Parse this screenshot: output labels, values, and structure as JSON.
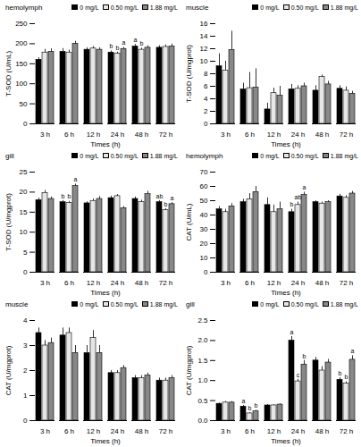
{
  "chart_data": [
    {
      "type": "bar",
      "title": "hemolymph",
      "xlabel": "Times (h)",
      "ylabel": "T-SOD (U/mL)",
      "categories": [
        "3 h",
        "6 h",
        "12 h",
        "24 h",
        "48 h",
        "72 h"
      ],
      "ylim": [
        0,
        250
      ],
      "yticks": [
        0,
        50,
        100,
        150,
        200,
        250
      ],
      "legend": "top-right",
      "series": [
        {
          "name": "0 mg/L",
          "color": "#000000",
          "values": [
            160,
            180,
            185,
            178,
            193,
            190
          ],
          "errors": [
            5,
            8,
            5,
            4,
            5,
            5
          ],
          "letters": [
            null,
            null,
            null,
            "b",
            "a",
            null
          ]
        },
        {
          "name": "0.50 mg/L",
          "color": "#e6e6e6",
          "values": [
            178,
            178,
            188,
            175,
            185,
            192
          ],
          "errors": [
            8,
            6,
            5,
            4,
            4,
            5
          ],
          "letters": [
            null,
            null,
            null,
            "b",
            "b",
            null
          ]
        },
        {
          "name": "1.88 mg/L",
          "color": "#888888",
          "values": [
            180,
            200,
            185,
            187,
            190,
            193
          ],
          "errors": [
            7,
            6,
            5,
            4,
            5,
            6
          ],
          "letters": [
            null,
            null,
            null,
            "a",
            null,
            null
          ]
        }
      ]
    },
    {
      "type": "bar",
      "title": "muscle",
      "xlabel": "Times (h)",
      "ylabel": "T-SOD (U/mgprot)",
      "categories": [
        "3 h",
        "6 h",
        "12 h",
        "24 h",
        "48 h",
        "72 h"
      ],
      "ylim": [
        0,
        16
      ],
      "yticks": [
        0,
        2,
        4,
        6,
        8,
        10,
        12,
        14,
        16
      ],
      "legend": "top-right",
      "series": [
        {
          "name": "0 mg/L",
          "color": "#000000",
          "values": [
            9.2,
            5.5,
            2.3,
            5.5,
            5.3,
            5.6
          ],
          "errors": [
            2,
            1,
            1,
            0.8,
            0.8,
            0.5
          ],
          "letters": [
            null,
            null,
            null,
            null,
            null,
            null
          ]
        },
        {
          "name": "0.50 mg/L",
          "color": "#e6e6e6",
          "values": [
            8.5,
            5.7,
            4.9,
            5.6,
            7.5,
            5.3
          ],
          "errors": [
            1.5,
            2.5,
            0.8,
            0.5,
            0.3,
            0.6
          ],
          "letters": [
            null,
            null,
            null,
            null,
            null,
            null
          ]
        },
        {
          "name": "1.88 mg/L",
          "color": "#888888",
          "values": [
            11.8,
            5.8,
            4.5,
            6.0,
            6.3,
            4.8
          ],
          "errors": [
            3,
            3,
            1.5,
            0.5,
            0.5,
            0.4
          ],
          "letters": [
            null,
            null,
            null,
            null,
            null,
            null
          ]
        }
      ]
    },
    {
      "type": "bar",
      "title": "gill",
      "xlabel": "Times (h)",
      "ylabel": "T-SOD (U/mgprot)",
      "categories": [
        "3 h",
        "6 h",
        "12 h",
        "24 h",
        "48 h",
        "72 h"
      ],
      "ylim": [
        0,
        25
      ],
      "yticks": [
        0,
        5,
        10,
        15,
        20,
        25
      ],
      "legend": "top-right",
      "series": [
        {
          "name": "0 mg/L",
          "color": "#000000",
          "values": [
            18,
            17.5,
            17.2,
            18.5,
            18.3,
            17.5
          ],
          "errors": [
            0.5,
            0.4,
            0.4,
            0.5,
            0.5,
            0.4
          ],
          "letters": [
            null,
            "b",
            null,
            null,
            null,
            "ab"
          ]
        },
        {
          "name": "0.50 mg/L",
          "color": "#e6e6e6",
          "values": [
            19.8,
            17.3,
            17.8,
            19.0,
            17.5,
            15.5
          ],
          "errors": [
            0.6,
            0.4,
            0.5,
            0.4,
            0.5,
            0.4
          ],
          "letters": [
            null,
            "b",
            null,
            null,
            null,
            "b"
          ]
        },
        {
          "name": "1.88 mg/L",
          "color": "#888888",
          "values": [
            18.3,
            21.5,
            18.3,
            16.0,
            19.5,
            17.0
          ],
          "errors": [
            0.5,
            0.5,
            0.6,
            0.4,
            0.7,
            0.4
          ],
          "letters": [
            null,
            "a",
            null,
            null,
            null,
            "a"
          ]
        }
      ]
    },
    {
      "type": "bar",
      "title": "hemolymph",
      "xlabel": "Times (h)",
      "ylabel": "CAT (U/mL)",
      "categories": [
        "3 h",
        "6 h",
        "12 h",
        "24 h",
        "48 h",
        "72 h"
      ],
      "ylim": [
        0,
        70
      ],
      "yticks": [
        0,
        10,
        20,
        30,
        40,
        50,
        60,
        70
      ],
      "legend": "top-right",
      "series": [
        {
          "name": "0 mg/L",
          "color": "#000000",
          "values": [
            44,
            49,
            47,
            42,
            49,
            53
          ],
          "errors": [
            2,
            2,
            5,
            2,
            1,
            1.5
          ],
          "letters": [
            null,
            null,
            null,
            "b",
            null,
            null
          ]
        },
        {
          "name": "0.50 mg/L",
          "color": "#e6e6e6",
          "values": [
            42,
            51,
            42,
            47,
            48,
            52
          ],
          "errors": [
            2,
            4,
            5,
            2,
            1,
            1.5
          ],
          "letters": [
            null,
            null,
            null,
            "ab",
            null,
            null
          ]
        },
        {
          "name": "1.88 mg/L",
          "color": "#888888",
          "values": [
            46,
            56,
            44,
            54,
            49,
            55
          ],
          "errors": [
            2,
            4,
            5,
            2,
            1,
            1.5
          ],
          "letters": [
            null,
            null,
            null,
            "a",
            null,
            null
          ]
        }
      ]
    },
    {
      "type": "bar",
      "title": "muscle",
      "xlabel": "Times (h)",
      "ylabel": "CAT (U/mgprot)",
      "categories": [
        "3 h",
        "6 h",
        "12 h",
        "24 h",
        "48 h",
        "72 h"
      ],
      "ylim": [
        0,
        4
      ],
      "yticks": [
        0,
        1,
        2,
        3,
        4
      ],
      "legend": "top-right",
      "series": [
        {
          "name": "0 mg/L",
          "color": "#000000",
          "values": [
            3.5,
            3.4,
            2.7,
            1.9,
            1.7,
            1.6
          ],
          "errors": [
            0.2,
            0.3,
            0.3,
            0.1,
            0.1,
            0.1
          ],
          "letters": [
            null,
            null,
            null,
            null,
            null,
            null
          ]
        },
        {
          "name": "0.50 mg/L",
          "color": "#e6e6e6",
          "values": [
            3.0,
            3.5,
            3.3,
            1.9,
            1.7,
            1.6
          ],
          "errors": [
            0.2,
            0.2,
            0.3,
            0.1,
            0.1,
            0.1
          ],
          "letters": [
            null,
            null,
            null,
            null,
            null,
            null
          ]
        },
        {
          "name": "1.88 mg/L",
          "color": "#888888",
          "values": [
            3.1,
            2.7,
            2.7,
            2.1,
            1.8,
            1.7
          ],
          "errors": [
            0.2,
            0.3,
            0.3,
            0.1,
            0.1,
            0.1
          ],
          "letters": [
            null,
            null,
            null,
            null,
            null,
            null
          ]
        }
      ]
    },
    {
      "type": "bar",
      "title": "gill",
      "xlabel": "Times (h)",
      "ylabel": "CAT (U/mgprot)",
      "categories": [
        "3 h",
        "6 h",
        "12 h",
        "24 h",
        "48 h",
        "72 h"
      ],
      "ylim": [
        0,
        2.5
      ],
      "yticks": [
        {
          "value": 0,
          "label": "0.0"
        },
        {
          "value": 0.5,
          "label": "0.5"
        },
        {
          "value": 1,
          "label": "1.0"
        },
        {
          "value": 1.5,
          "label": "1.5"
        },
        {
          "value": 2,
          "label": "2.0"
        },
        {
          "value": 2.5,
          "label": "2.5"
        }
      ],
      "legend": "top-right",
      "series": [
        {
          "name": "0 mg/L",
          "color": "#000000",
          "values": [
            0.42,
            0.35,
            0.38,
            2.0,
            1.5,
            1.02
          ],
          "errors": [
            0.02,
            0.03,
            0.02,
            0.1,
            0.08,
            0.05
          ],
          "letters": [
            null,
            "a",
            null,
            "a",
            null,
            "b"
          ]
        },
        {
          "name": "0.50 mg/L",
          "color": "#e6e6e6",
          "values": [
            0.45,
            0.18,
            0.38,
            0.98,
            1.25,
            0.93
          ],
          "errors": [
            0.03,
            0.02,
            0.02,
            0.05,
            0.1,
            0.04
          ],
          "letters": [
            null,
            "b",
            null,
            "c",
            null,
            "b"
          ]
        },
        {
          "name": "1.88 mg/L",
          "color": "#888888",
          "values": [
            0.45,
            0.23,
            0.4,
            1.4,
            1.45,
            1.52
          ],
          "errors": [
            0.03,
            0.03,
            0.02,
            0.1,
            0.08,
            0.1
          ],
          "letters": [
            null,
            "b",
            null,
            "b",
            null,
            "a"
          ]
        }
      ]
    }
  ]
}
